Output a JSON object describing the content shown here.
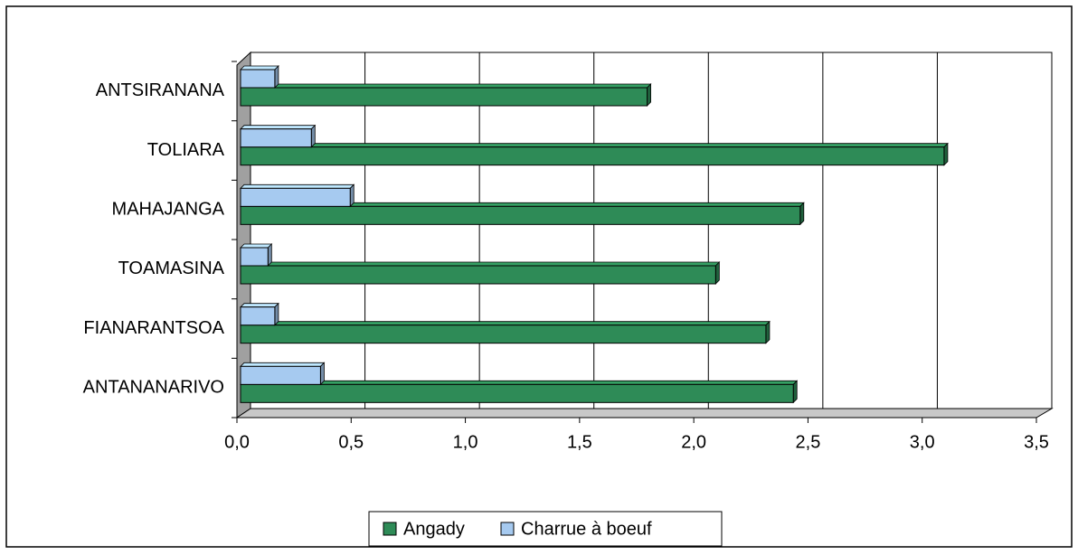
{
  "chart_data": {
    "type": "bar",
    "orientation": "horizontal",
    "categories": [
      "ANTANANARIVO",
      "FIANARANTSOA",
      "TOAMASINA",
      "MAHAJANGA",
      "TOLIARA",
      "ANTSIRANANA"
    ],
    "series": [
      {
        "name": "Angady",
        "color": "#2e8b57",
        "values": [
          2.42,
          2.3,
          2.08,
          2.45,
          3.08,
          1.78
        ]
      },
      {
        "name": "Charrue à boeuf",
        "color": "#a6caf0",
        "values": [
          0.35,
          0.15,
          0.12,
          0.48,
          0.31,
          0.15
        ]
      }
    ],
    "xlim": [
      0,
      3.5
    ],
    "xticks": [
      {
        "value": 0,
        "label": "0,0"
      },
      {
        "value": 0.5,
        "label": "0,5"
      },
      {
        "value": 1,
        "label": "1,0"
      },
      {
        "value": 1.5,
        "label": "1,5"
      },
      {
        "value": 2,
        "label": "2,0"
      },
      {
        "value": 2.5,
        "label": "2,5"
      },
      {
        "value": 3,
        "label": "3,0"
      },
      {
        "value": 3.5,
        "label": "3,5"
      }
    ],
    "grid": true,
    "legend": "bottom"
  }
}
